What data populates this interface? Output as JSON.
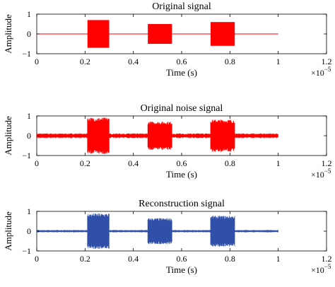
{
  "chart_data": [
    {
      "type": "line",
      "title": "Original signal",
      "xlabel": "Time (s)",
      "ylabel": "Amplitude",
      "x_multiplier": "×10",
      "x_multiplier_exp": "−5",
      "xlim": [
        0,
        1.2
      ],
      "ylim": [
        -1,
        1
      ],
      "xticks": [
        "0",
        "0.2",
        "0.4",
        "0.6",
        "0.8",
        "1",
        "1.2"
      ],
      "yticks": [
        "1",
        "0",
        "−1"
      ],
      "color": "#ff0000",
      "signal_end": 1.0,
      "bursts": [
        {
          "start": 0.21,
          "end": 0.3,
          "amplitude": 0.7
        },
        {
          "start": 0.46,
          "end": 0.56,
          "amplitude": 0.5
        },
        {
          "start": 0.72,
          "end": 0.82,
          "amplitude": 0.6
        }
      ],
      "baseline_amplitude": 0.0,
      "grid": false
    },
    {
      "type": "line",
      "title": "Original noise signal",
      "xlabel": "Time (s)",
      "ylabel": "Amplitude",
      "x_multiplier": "×10",
      "x_multiplier_exp": "−5",
      "xlim": [
        0,
        1.2
      ],
      "ylim": [
        -1,
        1
      ],
      "xticks": [
        "0",
        "0.2",
        "0.4",
        "0.6",
        "0.8",
        "1",
        "1.2"
      ],
      "yticks": [
        "1",
        "0",
        "−1"
      ],
      "color": "#ff0000",
      "signal_end": 1.0,
      "bursts": [
        {
          "start": 0.21,
          "end": 0.3,
          "amplitude": 0.92
        },
        {
          "start": 0.46,
          "end": 0.56,
          "amplitude": 0.72
        },
        {
          "start": 0.72,
          "end": 0.82,
          "amplitude": 0.82
        }
      ],
      "baseline_amplitude": 0.12,
      "grid": false
    },
    {
      "type": "line",
      "title": "Reconstruction signal",
      "xlabel": "Time (s)",
      "ylabel": "Amplitude",
      "x_multiplier": "×10",
      "x_multiplier_exp": "−5",
      "xlim": [
        0,
        1.2
      ],
      "ylim": [
        -1,
        1
      ],
      "xticks": [
        "0",
        "0.2",
        "0.4",
        "0.6",
        "0.8",
        "1",
        "1.2"
      ],
      "yticks": [
        "1",
        "0",
        "−1"
      ],
      "color": "#2f4fa8",
      "signal_end": 1.0,
      "bursts": [
        {
          "start": 0.21,
          "end": 0.3,
          "amplitude": 0.9
        },
        {
          "start": 0.46,
          "end": 0.56,
          "amplitude": 0.66
        },
        {
          "start": 0.72,
          "end": 0.82,
          "amplitude": 0.78
        }
      ],
      "baseline_amplitude": 0.06,
      "grid": false
    }
  ]
}
